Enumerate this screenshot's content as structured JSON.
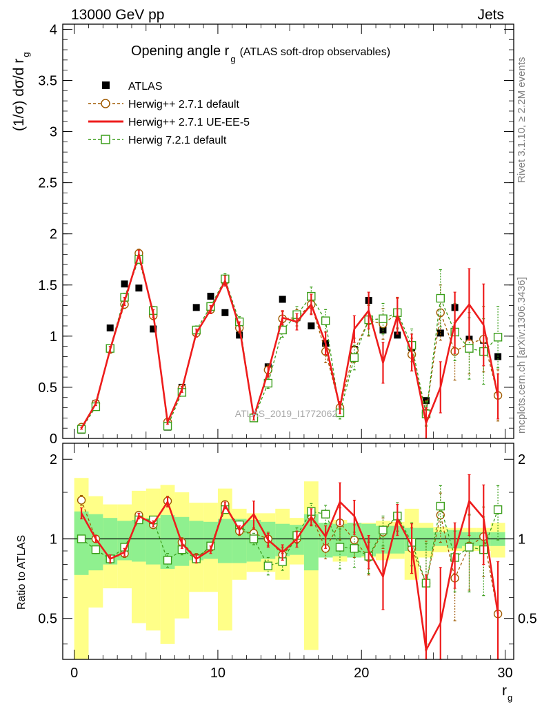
{
  "header": {
    "left": "13000 GeV pp",
    "right": "Jets"
  },
  "side_labels": {
    "rivet": "Rivet 3.1.10, ≥ 2.2M events",
    "mcplots": "mcplots.cern.ch [arXiv:1306.3436]"
  },
  "watermark": "ATLAS_2019_I1772062",
  "chart_data": [
    {
      "panel": "main",
      "type": "scatter",
      "title_main": "Opening angle r",
      "title_sub": "g",
      "title_tail": "(ATLAS soft-drop observables)",
      "ylabel": "(1/σ) dσ/d r",
      "ylabel_sub": "g",
      "xlim": [
        -0.8,
        30.6
      ],
      "ylim": [
        0,
        4.05
      ],
      "yticks": [
        0,
        0.5,
        1,
        1.5,
        2,
        2.5,
        3,
        3.5,
        4
      ],
      "ytick_labels": [
        "0",
        "0.5",
        "1",
        "1.5",
        "2",
        "2.5",
        "3",
        "3.5",
        "4"
      ],
      "x": [
        0.5,
        1.5,
        2.5,
        3.5,
        4.5,
        5.5,
        6.5,
        7.5,
        8.5,
        9.5,
        10.5,
        11.5,
        12.5,
        13.5,
        14.5,
        15.5,
        16.5,
        17.5,
        18.5,
        19.5,
        20.5,
        21.5,
        22.5,
        23.5,
        24.5,
        25.5,
        26.5,
        27.5,
        28.5,
        29.5
      ],
      "legend": [
        {
          "label": "ATLAS",
          "key": "atlas"
        },
        {
          "label": "Herwig++ 2.7.1 default",
          "key": "hpp_default"
        },
        {
          "label": "Herwig++ 2.7.1 UE-EE-5",
          "key": "hpp_ueee5"
        },
        {
          "label": "Herwig 7.2.1 default",
          "key": "h7_default"
        }
      ],
      "series": [
        {
          "key": "atlas",
          "marker": "square-filled",
          "color": "#000000",
          "values": [
            0.08,
            0.34,
            1.08,
            1.51,
            1.47,
            1.07,
            0.11,
            0.5,
            1.28,
            1.39,
            1.23,
            1.01,
            0.2,
            0.7,
            1.36,
            1.18,
            1.1,
            0.93,
            0.27,
            0.87,
            1.35,
            1.06,
            1.01,
            0.89,
            0.37,
            1.03,
            1.28,
            0.97,
            0.96,
            0.8
          ]
        },
        {
          "key": "hpp_default",
          "marker": "circle-open",
          "line": "dashed",
          "color": "#a05a00",
          "values": [
            0.11,
            0.34,
            0.87,
            1.31,
            1.81,
            1.2,
            0.16,
            0.49,
            1.03,
            1.26,
            1.54,
            1.08,
            0.21,
            0.67,
            1.17,
            1.18,
            1.31,
            0.85,
            0.3,
            0.86,
            1.15,
            1.12,
            1.22,
            0.82,
            0.25,
            1.23,
            0.85,
            0.93,
            0.97,
            0.42
          ],
          "err": [
            0.01,
            0.02,
            0.03,
            0.04,
            0.04,
            0.04,
            0.02,
            0.03,
            0.04,
            0.04,
            0.05,
            0.05,
            0.03,
            0.05,
            0.07,
            0.08,
            0.09,
            0.11,
            0.06,
            0.12,
            0.15,
            0.15,
            0.15,
            0.16,
            0.12,
            0.27,
            0.28,
            0.3,
            0.32,
            0.25
          ]
        },
        {
          "key": "hpp_ueee5",
          "marker": "none",
          "line": "solid",
          "color": "#ee1c1c",
          "values": [
            0.1,
            0.34,
            0.87,
            1.34,
            1.8,
            1.22,
            0.16,
            0.48,
            1.03,
            1.26,
            1.54,
            1.09,
            0.21,
            0.65,
            1.18,
            1.14,
            1.31,
            0.93,
            0.3,
            1.07,
            1.25,
            0.74,
            1.2,
            0.84,
            0.15,
            0.5,
            1.13,
            1.31,
            1.11,
            0.41
          ],
          "err": [
            0.01,
            0.02,
            0.03,
            0.04,
            0.04,
            0.04,
            0.02,
            0.03,
            0.04,
            0.04,
            0.05,
            0.05,
            0.03,
            0.05,
            0.07,
            0.08,
            0.1,
            0.11,
            0.06,
            0.13,
            0.18,
            0.2,
            0.18,
            0.18,
            0.15,
            0.25,
            0.3,
            0.35,
            0.4,
            0.22
          ]
        },
        {
          "key": "h7_default",
          "marker": "square-open",
          "line": "dashed",
          "color": "#3a9e1a",
          "values": [
            0.09,
            0.31,
            0.88,
            1.38,
            1.75,
            1.25,
            0.12,
            0.45,
            1.06,
            1.29,
            1.56,
            1.14,
            0.2,
            0.54,
            1.06,
            1.21,
            1.39,
            1.15,
            0.25,
            0.79,
            1.16,
            1.17,
            1.23,
            0.91,
            0.24,
            1.37,
            1.04,
            0.88,
            0.85,
            0.99
          ],
          "err": [
            0.01,
            0.02,
            0.03,
            0.04,
            0.04,
            0.04,
            0.02,
            0.03,
            0.04,
            0.04,
            0.05,
            0.05,
            0.03,
            0.05,
            0.07,
            0.08,
            0.09,
            0.11,
            0.06,
            0.12,
            0.15,
            0.15,
            0.15,
            0.16,
            0.12,
            0.28,
            0.28,
            0.3,
            0.32,
            0.3
          ]
        }
      ]
    },
    {
      "panel": "ratio",
      "type": "line",
      "ylabel": "Ratio to ATLAS",
      "xlabel": "r",
      "xlabel_sub": "g",
      "xlim": [
        -0.8,
        30.6
      ],
      "ylim": [
        0.35,
        2.3
      ],
      "yticks": [
        0.5,
        1,
        2
      ],
      "ytick_labels": [
        "0.5",
        "1",
        "2"
      ],
      "xticks": [
        0,
        10,
        20,
        30
      ],
      "xtick_labels": [
        "0",
        "10",
        "20",
        "30"
      ],
      "band_inner": {
        "color": "#8ff08f",
        "lo": [
          0.73,
          0.76,
          0.8,
          0.83,
          0.82,
          0.8,
          0.77,
          0.79,
          0.83,
          0.84,
          0.81,
          0.81,
          0.82,
          0.84,
          0.86,
          0.87,
          0.76,
          0.85,
          0.86,
          0.85,
          0.86,
          0.88,
          0.88,
          0.9,
          0.9,
          0.94,
          0.92,
          0.94,
          0.94,
          0.94
        ],
        "hi": [
          1.27,
          1.24,
          1.2,
          1.17,
          1.18,
          1.2,
          1.23,
          1.21,
          1.17,
          1.16,
          1.19,
          1.19,
          1.18,
          1.16,
          1.14,
          1.13,
          1.24,
          1.15,
          1.14,
          1.15,
          1.14,
          1.12,
          1.12,
          1.1,
          1.1,
          1.06,
          1.08,
          1.06,
          1.06,
          1.06
        ]
      },
      "band_outer": {
        "color": "#ffff88",
        "lo": [
          0.3,
          0.55,
          0.65,
          0.65,
          0.48,
          0.45,
          0.4,
          0.5,
          0.63,
          0.63,
          0.45,
          0.7,
          0.75,
          0.75,
          0.7,
          0.8,
          0.38,
          0.85,
          0.82,
          0.85,
          0.85,
          0.83,
          0.84,
          0.7,
          0.85,
          0.89,
          0.9,
          0.9,
          0.9,
          0.85
        ],
        "hi": [
          1.7,
          1.45,
          1.35,
          1.35,
          1.52,
          1.55,
          1.6,
          1.5,
          1.37,
          1.37,
          1.55,
          1.3,
          1.25,
          1.25,
          1.3,
          1.2,
          1.65,
          1.15,
          1.18,
          1.15,
          1.15,
          1.17,
          1.16,
          1.3,
          1.15,
          1.11,
          1.1,
          1.1,
          1.1,
          1.15
        ]
      },
      "series": [
        {
          "key": "hpp_default",
          "color": "#a05a00",
          "values": [
            1.4,
            1.0,
            0.84,
            0.88,
            1.23,
            1.13,
            1.39,
            0.97,
            0.85,
            0.93,
            1.35,
            1.07,
            1.05,
            1.0,
            0.87,
            1.0,
            1.22,
            0.92,
            1.15,
            0.99,
            0.85,
            1.06,
            1.22,
            0.92,
            0.68,
            1.23,
            0.71,
            0.94,
            1.02,
            0.52
          ],
          "err": [
            0.06,
            0.03,
            0.03,
            0.03,
            0.03,
            0.03,
            0.06,
            0.04,
            0.03,
            0.03,
            0.04,
            0.04,
            0.05,
            0.06,
            0.06,
            0.07,
            0.09,
            0.08,
            0.16,
            0.14,
            0.12,
            0.14,
            0.15,
            0.18,
            0.3,
            0.26,
            0.22,
            0.3,
            0.3,
            0.3
          ]
        },
        {
          "key": "hpp_ueee5",
          "color": "#ee1c1c",
          "values": [
            1.25,
            1.0,
            0.84,
            0.89,
            1.22,
            1.14,
            1.38,
            0.96,
            0.84,
            0.91,
            1.34,
            1.08,
            1.24,
            0.99,
            0.89,
            1.0,
            1.21,
            1.02,
            1.38,
            1.22,
            0.9,
            0.72,
            1.19,
            0.94,
            0.38,
            0.48,
            0.9,
            1.39,
            1.2,
            0.52
          ],
          "err": [
            0.06,
            0.03,
            0.03,
            0.03,
            0.03,
            0.03,
            0.06,
            0.04,
            0.03,
            0.03,
            0.04,
            0.04,
            0.15,
            0.06,
            0.06,
            0.07,
            0.09,
            0.1,
            0.25,
            0.18,
            0.13,
            0.18,
            0.16,
            0.2,
            0.35,
            0.3,
            0.25,
            0.36,
            0.4,
            0.3
          ]
        },
        {
          "key": "h7_default",
          "color": "#3a9e1a",
          "values": [
            1.0,
            0.91,
            0.84,
            0.93,
            1.18,
            1.18,
            0.83,
            0.91,
            0.84,
            0.94,
            1.29,
            1.13,
            1.0,
            0.79,
            0.82,
            1.03,
            1.27,
            1.24,
            0.93,
            0.92,
            0.86,
            1.08,
            1.22,
            0.97,
            0.68,
            1.33,
            0.85,
            0.93,
            0.91,
            1.29
          ],
          "err": [
            0.03,
            0.03,
            0.03,
            0.03,
            0.03,
            0.03,
            0.05,
            0.04,
            0.03,
            0.03,
            0.04,
            0.04,
            0.05,
            0.06,
            0.06,
            0.07,
            0.09,
            0.1,
            0.16,
            0.14,
            0.12,
            0.14,
            0.15,
            0.18,
            0.28,
            0.26,
            0.22,
            0.3,
            0.3,
            0.3
          ]
        }
      ]
    }
  ]
}
